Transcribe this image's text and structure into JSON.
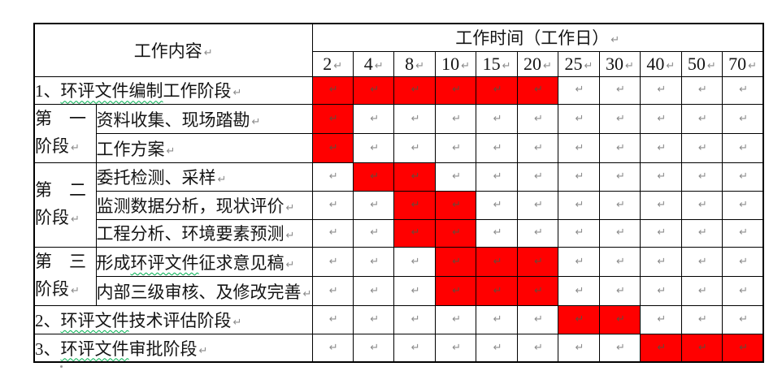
{
  "marks": {
    "pilcrow": "↵"
  },
  "colors": {
    "highlight": "#ff0000",
    "border": "#000000",
    "mark_gray": "#8c8c8c",
    "mark_on_red": "#6e4636",
    "squiggle_green": "#00b050",
    "page_background": "#ffffff"
  },
  "table": {
    "header": {
      "content_label": "工作内容",
      "time_label": "工作时间（工作日）",
      "days": [
        "2",
        "4",
        "8",
        "10",
        "15",
        "20",
        "25",
        "30",
        "40",
        "50",
        "70"
      ]
    },
    "rows": [
      {
        "kind": "phase",
        "parts": [
          {
            "t": "1、"
          },
          {
            "t": "环评文件编制",
            "sq": true
          },
          {
            "t": "工作阶段"
          }
        ],
        "red_cols": [
          0,
          1,
          2,
          3,
          4,
          5
        ]
      },
      {
        "kind": "task",
        "stage": {
          "line1": "第　一",
          "line2": "阶段",
          "rowspan": 2
        },
        "parts": [
          {
            "t": " 资料收集、现场踏勘"
          }
        ],
        "red_cols": [
          0
        ]
      },
      {
        "kind": "task",
        "parts": [
          {
            "t": "工作方案"
          }
        ],
        "red_cols": [
          0
        ]
      },
      {
        "kind": "task",
        "stage": {
          "line1": "第　二",
          "line2": "阶段",
          "rowspan": 3
        },
        "parts": [
          {
            "t": "委托检测、采样"
          }
        ],
        "red_cols": [
          1,
          2
        ]
      },
      {
        "kind": "task",
        "parts": [
          {
            "t": "监测数据分析，现状评价"
          }
        ],
        "red_cols": [
          2,
          3
        ]
      },
      {
        "kind": "task",
        "parts": [
          {
            "t": "工程分析、环境要素预测"
          }
        ],
        "red_cols": [
          2,
          3
        ]
      },
      {
        "kind": "task",
        "stage": {
          "line1": "第　三",
          "line2": "阶段",
          "rowspan": 2
        },
        "parts": [
          {
            "t": "形成"
          },
          {
            "t": "环评文件",
            "sq": true
          },
          {
            "t": "征求意见稿"
          }
        ],
        "red_cols": [
          3,
          4,
          5
        ]
      },
      {
        "kind": "task",
        "parts": [
          {
            "t": "内部三级审核、及修改完善"
          }
        ],
        "red_cols": [
          3,
          4,
          5
        ]
      },
      {
        "kind": "phase",
        "parts": [
          {
            "t": "2、"
          },
          {
            "t": "环评文件",
            "sq": true
          },
          {
            "t": "技术评估阶段"
          }
        ],
        "red_cols": [
          6,
          7
        ]
      },
      {
        "kind": "phase",
        "parts": [
          {
            "t": "3、"
          },
          {
            "t": "环评文件",
            "sq": true
          },
          {
            "t": "审批阶段"
          }
        ],
        "red_cols": [
          8,
          9,
          10
        ]
      }
    ]
  }
}
